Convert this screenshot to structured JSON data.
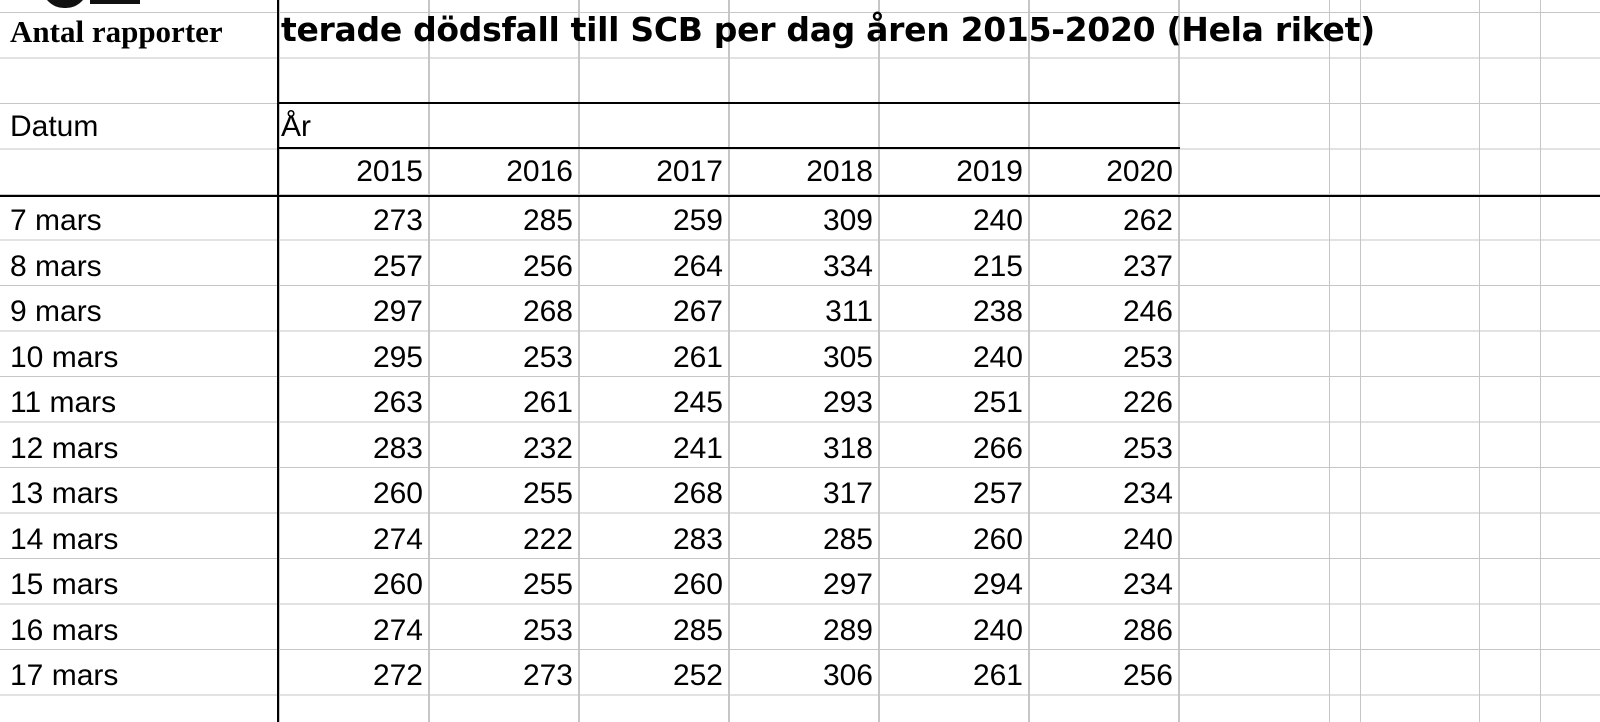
{
  "sheet": {
    "title_left": "Antal rapporter",
    "title_right": "terade dödsfall till SCB per dag åren 2015-2020 (Hela riket)",
    "row_header_label": "Datum",
    "column_group_label": "År",
    "years": [
      "2015",
      "2016",
      "2017",
      "2018",
      "2019",
      "2020"
    ],
    "rows": [
      {
        "date": "7 mars",
        "values": [
          "273",
          "285",
          "259",
          "309",
          "240",
          "262"
        ]
      },
      {
        "date": "8 mars",
        "values": [
          "257",
          "256",
          "264",
          "334",
          "215",
          "237"
        ]
      },
      {
        "date": "9 mars",
        "values": [
          "297",
          "268",
          "267",
          "311",
          "238",
          "246"
        ]
      },
      {
        "date": "10 mars",
        "values": [
          "295",
          "253",
          "261",
          "305",
          "240",
          "253"
        ]
      },
      {
        "date": "11 mars",
        "values": [
          "263",
          "261",
          "245",
          "293",
          "251",
          "226"
        ]
      },
      {
        "date": "12 mars",
        "values": [
          "283",
          "232",
          "241",
          "318",
          "266",
          "253"
        ]
      },
      {
        "date": "13 mars",
        "values": [
          "260",
          "255",
          "268",
          "317",
          "257",
          "234"
        ]
      },
      {
        "date": "14 mars",
        "values": [
          "274",
          "222",
          "283",
          "285",
          "260",
          "240"
        ]
      },
      {
        "date": "15 mars",
        "values": [
          "260",
          "255",
          "260",
          "297",
          "294",
          "234"
        ]
      },
      {
        "date": "16 mars",
        "values": [
          "274",
          "253",
          "285",
          "289",
          "240",
          "286"
        ]
      },
      {
        "date": "17 mars",
        "values": [
          "272",
          "273",
          "252",
          "306",
          "261",
          "256"
        ]
      }
    ]
  },
  "colors": {
    "gridline": "#c6c6c6",
    "border": "#000000",
    "text": "#000000",
    "background": "#ffffff"
  }
}
